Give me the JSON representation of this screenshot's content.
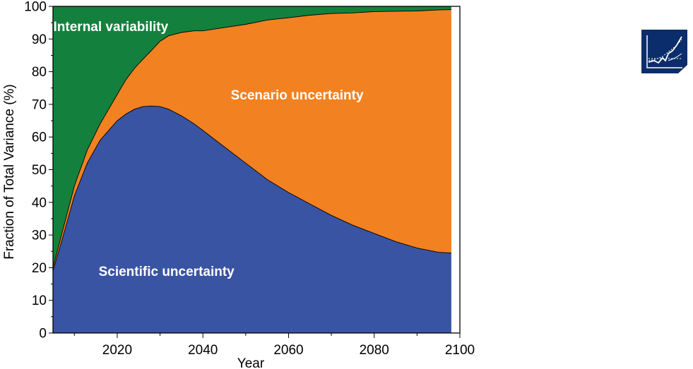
{
  "chart_data": {
    "type": "area",
    "stacked": true,
    "xlabel": "Year",
    "ylabel": "Fraction of Total Variance  (%)",
    "xlim": [
      2005,
      2100
    ],
    "ylim": [
      0,
      100
    ],
    "x_ticks": [
      2020,
      2040,
      2060,
      2080,
      2100
    ],
    "y_ticks": [
      0,
      10,
      20,
      30,
      40,
      50,
      60,
      70,
      80,
      90,
      100
    ],
    "x": [
      2005,
      2007,
      2010,
      2013,
      2016,
      2018,
      2020,
      2022,
      2024,
      2026,
      2028,
      2030,
      2032,
      2035,
      2038,
      2040,
      2045,
      2050,
      2055,
      2060,
      2065,
      2070,
      2075,
      2080,
      2085,
      2090,
      2095,
      2098
    ],
    "series": [
      {
        "name": "Scientific uncertainty",
        "color": "#3a54a4",
        "values": [
          19,
          28,
          42,
          52,
          59,
          62,
          65,
          67,
          68.5,
          69.3,
          69.5,
          69.3,
          68.5,
          66.5,
          64,
          62,
          57,
          52,
          47,
          43,
          39.5,
          36,
          33,
          30.5,
          28,
          26,
          24.7,
          24.5
        ]
      },
      {
        "name": "Scenario uncertainty",
        "color": "#f28121",
        "values": [
          1,
          2,
          3,
          4,
          5,
          6.5,
          8,
          10.5,
          12.5,
          14.5,
          17,
          20,
          22.5,
          25.5,
          28.5,
          30.5,
          36.5,
          42.5,
          48.8,
          53.5,
          57.8,
          61.8,
          65,
          67.9,
          70.5,
          72.6,
          74.2,
          74.5
        ]
      },
      {
        "name": "Internal variability",
        "color": "#13813d",
        "values": [
          80,
          70,
          55,
          44,
          36,
          31.5,
          27,
          22.5,
          19,
          16.2,
          13.5,
          10.7,
          9,
          8,
          7.5,
          7.5,
          6.5,
          5.5,
          4.2,
          3.5,
          2.7,
          2.2,
          2,
          1.6,
          1.5,
          1.4,
          1.1,
          1
        ]
      }
    ],
    "labels": [
      {
        "series": "Internal variability",
        "text": "Internal variability",
        "x": 2018.5,
        "y": 94
      },
      {
        "series": "Scenario uncertainty",
        "text": "Scenario uncertainty",
        "x": 2062,
        "y": 73
      },
      {
        "series": "Scientific uncertainty",
        "text": "Scientific uncertainty",
        "x": 2031.5,
        "y": 19
      }
    ],
    "grid": false
  },
  "badge": {
    "icon": "line-chart-icon",
    "color": "#0c2d6b"
  }
}
